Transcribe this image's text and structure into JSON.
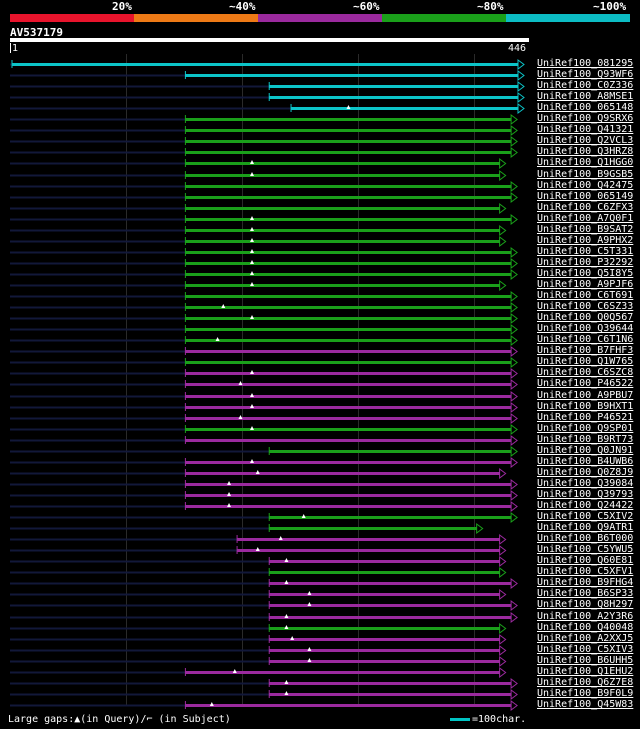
{
  "legend": {
    "colors": [
      "#e8142c",
      "#ee7a16",
      "#9b2a9e",
      "#1aa01a",
      "#0cbcc4"
    ],
    "labels": [
      "20%",
      "~40%",
      "~60%",
      "~80%",
      "~100%"
    ]
  },
  "query": {
    "id": "AV537179",
    "start": "1",
    "end": "446",
    "length": 446
  },
  "hits": [
    {
      "label": "UniRef100_081295",
      "color": "cyan",
      "start": 1,
      "end": 446,
      "gap": null
    },
    {
      "label": "UniRef100_Q93WF6",
      "color": "cyan",
      "start": 152,
      "end": 446,
      "gap": null
    },
    {
      "label": "UniRef100_C0Z336",
      "color": "cyan",
      "start": 225,
      "end": 446,
      "gap": null
    },
    {
      "label": "UniRef100_A8MSE1",
      "color": "cyan",
      "start": 225,
      "end": 446,
      "gap": null
    },
    {
      "label": "UniRef100_065148",
      "color": "cyan",
      "start": 244,
      "end": 446,
      "gap": 294
    },
    {
      "label": "UniRef100_Q9SRX6",
      "color": "green",
      "start": 152,
      "end": 440,
      "gap": null
    },
    {
      "label": "UniRef100_Q41321",
      "color": "green",
      "start": 152,
      "end": 440,
      "gap": null
    },
    {
      "label": "UniRef100_Q2VCL3",
      "color": "green",
      "start": 152,
      "end": 440,
      "gap": null
    },
    {
      "label": "UniRef100_Q3HRZ8",
      "color": "green",
      "start": 152,
      "end": 440,
      "gap": null
    },
    {
      "label": "UniRef100_Q1HGG0",
      "color": "green",
      "start": 152,
      "end": 430,
      "gap": 210
    },
    {
      "label": "UniRef100_B9GSB5",
      "color": "green",
      "start": 152,
      "end": 430,
      "gap": 210
    },
    {
      "label": "UniRef100_Q42475",
      "color": "green",
      "start": 152,
      "end": 440,
      "gap": null
    },
    {
      "label": "UniRef100_065149",
      "color": "green",
      "start": 152,
      "end": 440,
      "gap": null
    },
    {
      "label": "UniRef100_C6ZFX3",
      "color": "green",
      "start": 152,
      "end": 430,
      "gap": null
    },
    {
      "label": "UniRef100_A7Q0F1",
      "color": "green",
      "start": 152,
      "end": 440,
      "gap": 210
    },
    {
      "label": "UniRef100_B9SAT2",
      "color": "green",
      "start": 152,
      "end": 430,
      "gap": 210
    },
    {
      "label": "UniRef100_A9PHX2",
      "color": "green",
      "start": 152,
      "end": 430,
      "gap": 210
    },
    {
      "label": "UniRef100_C5T331",
      "color": "green",
      "start": 152,
      "end": 440,
      "gap": 210
    },
    {
      "label": "UniRef100_P32292",
      "color": "green",
      "start": 152,
      "end": 440,
      "gap": 210
    },
    {
      "label": "UniRef100_Q5I8Y5",
      "color": "green",
      "start": 152,
      "end": 440,
      "gap": 210
    },
    {
      "label": "UniRef100_A9PJF6",
      "color": "green",
      "start": 152,
      "end": 430,
      "gap": 210
    },
    {
      "label": "UniRef100_C6T691",
      "color": "green",
      "start": 152,
      "end": 440,
      "gap": null
    },
    {
      "label": "UniRef100_C6SZ33",
      "color": "green",
      "start": 152,
      "end": 440,
      "gap": 185
    },
    {
      "label": "UniRef100_Q0Q567",
      "color": "green",
      "start": 152,
      "end": 440,
      "gap": 210
    },
    {
      "label": "UniRef100_Q39644",
      "color": "green",
      "start": 152,
      "end": 440,
      "gap": null
    },
    {
      "label": "UniRef100_C6T1N6",
      "color": "green",
      "start": 152,
      "end": 440,
      "gap": 180
    },
    {
      "label": "UniRef100_B7FHF3",
      "color": "magenta",
      "start": 152,
      "end": 440,
      "gap": null
    },
    {
      "label": "UniRef100_Q1W765",
      "color": "green",
      "start": 152,
      "end": 440,
      "gap": null
    },
    {
      "label": "UniRef100_C6SZC8",
      "color": "magenta",
      "start": 152,
      "end": 440,
      "gap": 210
    },
    {
      "label": "UniRef100_P46522",
      "color": "magenta",
      "start": 152,
      "end": 440,
      "gap": 200
    },
    {
      "label": "UniRef100_A9PBU7",
      "color": "magenta",
      "start": 152,
      "end": 440,
      "gap": 210
    },
    {
      "label": "UniRef100_B9HXT1",
      "color": "magenta",
      "start": 152,
      "end": 440,
      "gap": 210
    },
    {
      "label": "UniRef100_P46521",
      "color": "magenta",
      "start": 152,
      "end": 440,
      "gap": 200
    },
    {
      "label": "UniRef100_Q9SP01",
      "color": "green",
      "start": 152,
      "end": 440,
      "gap": 210
    },
    {
      "label": "UniRef100_B9RT73",
      "color": "magenta",
      "start": 152,
      "end": 440,
      "gap": null
    },
    {
      "label": "UniRef100_Q0JN91",
      "color": "green",
      "start": 225,
      "end": 440,
      "gap": null
    },
    {
      "label": "UniRef100_B4UWB6",
      "color": "magenta",
      "start": 152,
      "end": 440,
      "gap": 210
    },
    {
      "label": "UniRef100_Q0Z8J9",
      "color": "magenta",
      "start": 152,
      "end": 430,
      "gap": 215
    },
    {
      "label": "UniRef100_Q39084",
      "color": "magenta",
      "start": 152,
      "end": 440,
      "gap": 190
    },
    {
      "label": "UniRef100_Q39793",
      "color": "magenta",
      "start": 152,
      "end": 440,
      "gap": 190
    },
    {
      "label": "UniRef100_Q24422",
      "color": "magenta",
      "start": 152,
      "end": 440,
      "gap": 190
    },
    {
      "label": "UniRef100_C5XIV2",
      "color": "green",
      "start": 225,
      "end": 440,
      "gap": 255
    },
    {
      "label": "UniRef100_Q9ATR1",
      "color": "green",
      "start": 225,
      "end": 410,
      "gap": null
    },
    {
      "label": "UniRef100_B6T000",
      "color": "magenta",
      "start": 197,
      "end": 430,
      "gap": 235
    },
    {
      "label": "UniRef100_C5YWU5",
      "color": "magenta",
      "start": 197,
      "end": 430,
      "gap": 215
    },
    {
      "label": "UniRef100_Q60E81",
      "color": "magenta",
      "start": 225,
      "end": 430,
      "gap": 240
    },
    {
      "label": "UniRef100_C5XFV1",
      "color": "green",
      "start": 225,
      "end": 430,
      "gap": null
    },
    {
      "label": "UniRef100_B9FHG4",
      "color": "magenta",
      "start": 225,
      "end": 440,
      "gap": 240
    },
    {
      "label": "UniRef100_B6SP33",
      "color": "magenta",
      "start": 225,
      "end": 430,
      "gap": 260
    },
    {
      "label": "UniRef100_Q8H297",
      "color": "magenta",
      "start": 225,
      "end": 440,
      "gap": 260
    },
    {
      "label": "UniRef100_A2Y3R6",
      "color": "magenta",
      "start": 225,
      "end": 440,
      "gap": 240
    },
    {
      "label": "UniRef100_Q40048",
      "color": "green",
      "start": 225,
      "end": 430,
      "gap": 240
    },
    {
      "label": "UniRef100_A2XXJ5",
      "color": "magenta",
      "start": 225,
      "end": 430,
      "gap": 245
    },
    {
      "label": "UniRef100_C5XIV3",
      "color": "magenta",
      "start": 225,
      "end": 430,
      "gap": 260
    },
    {
      "label": "UniRef100_B6UHH5",
      "color": "magenta",
      "start": 225,
      "end": 430,
      "gap": 260
    },
    {
      "label": "UniRef100_Q1EHU2",
      "color": "magenta",
      "start": 152,
      "end": 430,
      "gap": 195
    },
    {
      "label": "UniRef100_Q6Z7E8",
      "color": "magenta",
      "start": 225,
      "end": 440,
      "gap": 240
    },
    {
      "label": "UniRef100_B9F0L9",
      "color": "magenta",
      "start": 225,
      "end": 440,
      "gap": 240
    },
    {
      "label": "UniRef100_Q45W83",
      "color": "magenta",
      "start": 152,
      "end": 440,
      "gap": 175
    }
  ],
  "footer": {
    "gaps_text": "Large gaps:▲(in Query)/⌐ (in Subject)",
    "scale_text": "=100char."
  }
}
